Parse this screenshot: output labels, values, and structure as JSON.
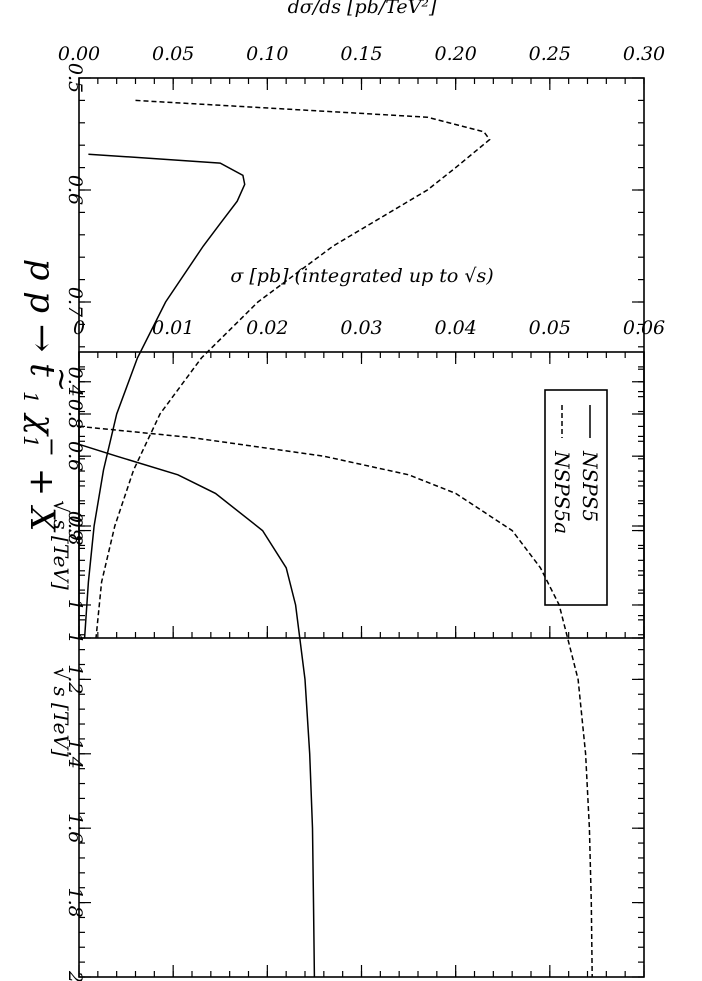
{
  "title": {
    "main": "p p → t",
    "t_tilde": "~",
    "t_sub": "1",
    "chi": " χ",
    "chi_sub": "1",
    "chi_sup": "−",
    "tail": " + X"
  },
  "legend": {
    "items": [
      {
        "label": "NSPS5",
        "style": "solid"
      },
      {
        "label": "NSPS5a",
        "style": "dashed"
      }
    ]
  },
  "chart_data": [
    {
      "type": "line",
      "panel": "differential",
      "ylabel": "dσ/ds [pb/TeV²]",
      "xlabel": "√ s  [TeV]",
      "xlim": [
        0.5,
        1.0
      ],
      "ylim": [
        0.0,
        0.3
      ],
      "xticks": [
        0.5,
        0.6,
        0.7,
        0.8,
        0.9,
        1.0
      ],
      "xtick_labels": [
        "0.5",
        "0.6",
        "0.7",
        "0.8",
        "0.9",
        "1"
      ],
      "yticks": [
        0.0,
        0.05,
        0.1,
        0.15,
        0.2,
        0.25,
        0.3
      ],
      "ytick_labels": [
        "0.00",
        "0.05",
        "0.10",
        "0.15",
        "0.20",
        "0.25",
        "0.30"
      ],
      "series": [
        {
          "name": "NSPS5",
          "style": "solid",
          "x": [
            0.568,
            0.576,
            0.587,
            0.595,
            0.61,
            0.63,
            0.65,
            0.7,
            0.75,
            0.8,
            0.85,
            0.9,
            0.95,
            1.0
          ],
          "y": [
            0.005,
            0.075,
            0.087,
            0.088,
            0.084,
            0.075,
            0.066,
            0.046,
            0.031,
            0.02,
            0.013,
            0.008,
            0.005,
            0.003
          ]
        },
        {
          "name": "NSPS5a",
          "style": "dashed",
          "x": [
            0.52,
            0.535,
            0.548,
            0.555,
            0.58,
            0.6,
            0.65,
            0.7,
            0.75,
            0.8,
            0.85,
            0.9,
            0.95,
            1.0
          ],
          "y": [
            0.03,
            0.185,
            0.215,
            0.218,
            0.2,
            0.185,
            0.135,
            0.095,
            0.065,
            0.043,
            0.029,
            0.019,
            0.012,
            0.009
          ]
        }
      ]
    },
    {
      "type": "line",
      "panel": "integrated",
      "ylabel": "σ [pb] (integrated up to √s)",
      "xlabel": "√ s  [TeV]",
      "xlim": [
        0.32,
        2.0
      ],
      "ylim": [
        0.0,
        0.06
      ],
      "xticks": [
        0.4,
        0.6,
        0.8,
        1.0,
        1.2,
        1.4,
        1.6,
        1.8,
        2.0
      ],
      "xtick_labels": [
        "0.4",
        "0.6",
        "0.8",
        "1",
        "1.2",
        "1.4",
        "1.6",
        "1.8",
        "2"
      ],
      "yticks": [
        0.0,
        0.01,
        0.02,
        0.03,
        0.04,
        0.05,
        0.06
      ],
      "ytick_labels": [
        "0",
        "0.01",
        "0.02",
        "0.03",
        "0.04",
        "0.05",
        "0.06"
      ],
      "series": [
        {
          "name": "NSPS5",
          "style": "solid",
          "x": [
            0.568,
            0.6,
            0.65,
            0.7,
            0.8,
            0.9,
            1.0,
            1.2,
            1.4,
            1.6,
            1.8,
            2.0
          ],
          "y": [
            0.0,
            0.004,
            0.0105,
            0.0145,
            0.0195,
            0.022,
            0.023,
            0.024,
            0.0245,
            0.0248,
            0.0249,
            0.025
          ]
        },
        {
          "name": "NSPS5a",
          "style": "dashed",
          "x": [
            0.52,
            0.55,
            0.6,
            0.65,
            0.7,
            0.8,
            0.9,
            1.0,
            1.2,
            1.4,
            1.6,
            1.8,
            2.0
          ],
          "y": [
            0.0,
            0.012,
            0.026,
            0.035,
            0.04,
            0.046,
            0.049,
            0.051,
            0.053,
            0.0538,
            0.0542,
            0.0544,
            0.0545
          ]
        }
      ]
    }
  ]
}
